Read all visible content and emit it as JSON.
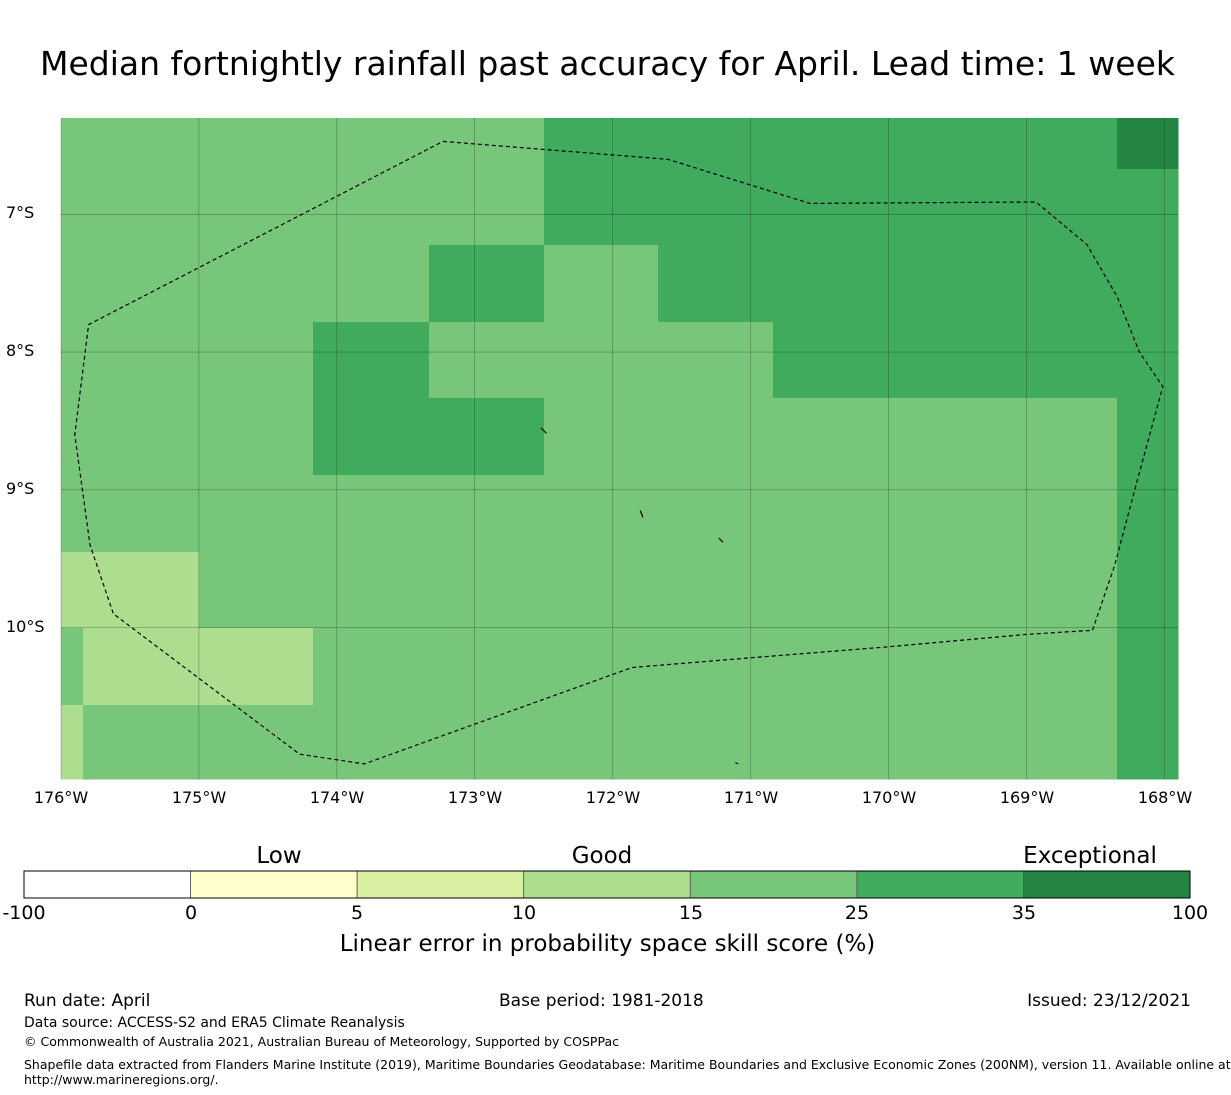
{
  "title": "Median fortnightly rainfall past accuracy for April. Lead time: 1 week",
  "map": {
    "lon_ticks": [
      "176°W",
      "175°W",
      "174°W",
      "173°W",
      "172°W",
      "171°W",
      "170°W",
      "169°W",
      "168°W"
    ],
    "lat_ticks": [
      "7°S",
      "8°S",
      "9°S",
      "10°S"
    ],
    "lon_range": [
      -176.0,
      -167.9
    ],
    "lat_range": [
      -6.3,
      -11.1
    ],
    "grid": true,
    "boundary_style": "dashed",
    "cell_size_deg": 0.83,
    "cells": [
      {
        "lon0": -176.0,
        "lon1": -172.5,
        "lat0": -6.3,
        "lat1": -7.22,
        "category": "15-25"
      },
      {
        "lon0": -172.5,
        "lon1": -168.34,
        "lat0": -6.3,
        "lat1": -7.22,
        "category": "25-35"
      },
      {
        "lon0": -168.34,
        "lon1": -167.9,
        "lat0": -6.3,
        "lat1": -6.67,
        "category": "35-100"
      },
      {
        "lon0": -168.34,
        "lon1": -167.9,
        "lat0": -6.67,
        "lat1": -7.22,
        "category": "25-35"
      },
      {
        "lon0": -176.0,
        "lon1": -173.33,
        "lat0": -7.22,
        "lat1": -7.78,
        "category": "15-25"
      },
      {
        "lon0": -173.33,
        "lon1": -172.5,
        "lat0": -7.22,
        "lat1": -7.78,
        "category": "25-35"
      },
      {
        "lon0": -172.5,
        "lon1": -171.67,
        "lat0": -7.22,
        "lat1": -7.78,
        "category": "15-25"
      },
      {
        "lon0": -171.67,
        "lon1": -167.9,
        "lat0": -7.22,
        "lat1": -7.78,
        "category": "25-35"
      },
      {
        "lon0": -176.0,
        "lon1": -174.17,
        "lat0": -7.78,
        "lat1": -8.89,
        "category": "15-25"
      },
      {
        "lon0": -174.17,
        "lon1": -173.33,
        "lat0": -7.78,
        "lat1": -8.33,
        "category": "25-35"
      },
      {
        "lon0": -173.33,
        "lon1": -170.84,
        "lat0": -7.78,
        "lat1": -8.33,
        "category": "15-25"
      },
      {
        "lon0": -170.84,
        "lon1": -167.9,
        "lat0": -7.78,
        "lat1": -8.33,
        "category": "25-35"
      },
      {
        "lon0": -174.17,
        "lon1": -172.5,
        "lat0": -8.33,
        "lat1": -8.89,
        "category": "25-35"
      },
      {
        "lon0": -172.5,
        "lon1": -168.34,
        "lat0": -8.33,
        "lat1": -11.1,
        "category": "15-25"
      },
      {
        "lon0": -168.34,
        "lon1": -167.9,
        "lat0": -8.33,
        "lat1": -11.1,
        "category": "25-35"
      },
      {
        "lon0": -176.0,
        "lon1": -172.5,
        "lat0": -8.89,
        "lat1": -9.45,
        "category": "15-25"
      },
      {
        "lon0": -176.0,
        "lon1": -175.0,
        "lat0": -9.45,
        "lat1": -10.0,
        "category": "10-15"
      },
      {
        "lon0": -175.0,
        "lon1": -172.5,
        "lat0": -9.45,
        "lat1": -10.0,
        "category": "15-25"
      },
      {
        "lon0": -176.0,
        "lon1": -175.84,
        "lat0": -10.0,
        "lat1": -10.56,
        "category": "15-25"
      },
      {
        "lon0": -175.84,
        "lon1": -174.17,
        "lat0": -10.0,
        "lat1": -10.56,
        "category": "10-15"
      },
      {
        "lon0": -174.17,
        "lon1": -172.5,
        "lat0": -10.0,
        "lat1": -10.56,
        "category": "15-25"
      },
      {
        "lon0": -176.0,
        "lon1": -175.84,
        "lat0": -10.56,
        "lat1": -11.1,
        "category": "10-15"
      },
      {
        "lon0": -175.84,
        "lon1": -172.5,
        "lat0": -10.56,
        "lat1": -11.1,
        "category": "15-25"
      }
    ],
    "eez_boundary": [
      [
        -173.23,
        -6.47
      ],
      [
        -171.6,
        -6.6
      ],
      [
        -170.57,
        -6.92
      ],
      [
        -168.93,
        -6.91
      ],
      [
        -168.56,
        -7.22
      ],
      [
        -168.34,
        -7.6
      ],
      [
        -168.18,
        -8.0
      ],
      [
        -168.01,
        -8.25
      ],
      [
        -168.2,
        -8.95
      ],
      [
        -168.36,
        -9.55
      ],
      [
        -168.52,
        -10.02
      ],
      [
        -169.0,
        -10.05
      ],
      [
        -170.0,
        -10.14
      ],
      [
        -171.0,
        -10.22
      ],
      [
        -171.86,
        -10.29
      ],
      [
        -173.8,
        -10.99
      ],
      [
        -174.27,
        -10.92
      ],
      [
        -175.62,
        -9.9
      ],
      [
        -175.79,
        -9.4
      ],
      [
        -175.9,
        -8.6
      ],
      [
        -175.85,
        -8.2
      ],
      [
        -175.8,
        -7.8
      ],
      [
        -173.23,
        -6.47
      ]
    ],
    "islands": [
      [
        [
          -172.52,
          -8.55
        ],
        [
          -172.48,
          -8.59
        ]
      ],
      [
        [
          -171.8,
          -9.15
        ],
        [
          -171.78,
          -9.2
        ]
      ],
      [
        [
          -171.23,
          -9.35
        ],
        [
          -171.2,
          -9.38
        ]
      ],
      [
        [
          -171.11,
          -10.98
        ],
        [
          -171.09,
          -10.99
        ]
      ]
    ]
  },
  "legend": {
    "category_labels": [
      {
        "text": "Low",
        "at_value": "2.5"
      },
      {
        "text": "Good",
        "at_value": "15"
      },
      {
        "text": "Exceptional",
        "at_value": "35-100"
      }
    ],
    "bins": [
      {
        "from": "-100",
        "to": "0",
        "color": "#ffffff",
        "key": "-100-0"
      },
      {
        "from": "0",
        "to": "5",
        "color": "#ffffcc",
        "key": "0-5"
      },
      {
        "from": "5",
        "to": "10",
        "color": "#d9f0a3",
        "key": "5-10"
      },
      {
        "from": "10",
        "to": "15",
        "color": "#addd8e",
        "key": "10-15"
      },
      {
        "from": "15",
        "to": "25",
        "color": "#78c679",
        "key": "15-25"
      },
      {
        "from": "25",
        "to": "35",
        "color": "#41ab5d",
        "key": "25-35"
      },
      {
        "from": "35",
        "to": "100",
        "color": "#238443",
        "key": "35-100"
      }
    ],
    "tick_labels": [
      "-100",
      "0",
      "5",
      "10",
      "15",
      "25",
      "35",
      "100"
    ],
    "label": "Linear error in probability space skill score (%)"
  },
  "footer": {
    "run_date": "Run date: April",
    "base_period": "Base period: 1981-2018",
    "issued": "Issued: 23/12/2021",
    "data_source": "Data source: ACCESS-S2 and ERA5 Climate Reanalysis",
    "copyright": "© Commonwealth of Australia 2021, Australian Bureau of Meteorology, Supported by COSPPac",
    "shapefile_line1": "Shapefile data extracted from Flanders Marine Institute (2019), Maritime Boundaries Geodatabase: Maritime Boundaries and Exclusive Economic Zones (200NM), version 11. Available online at",
    "shapefile_line2": "http://www.marineregions.org/."
  }
}
